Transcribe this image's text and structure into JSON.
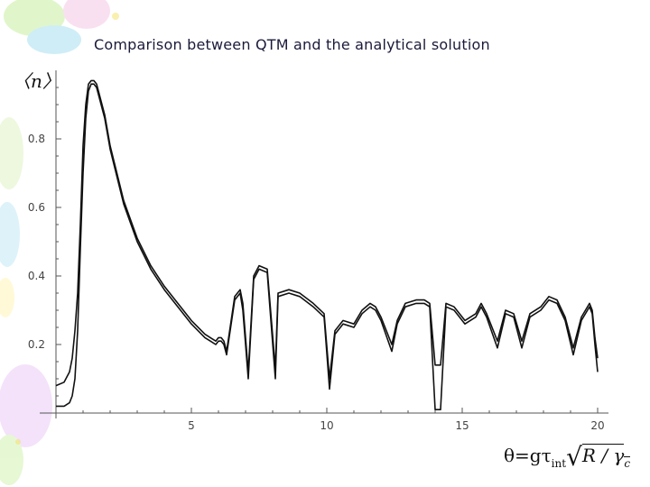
{
  "chart_data": {
    "type": "line",
    "title": "Comparison between QTM and the analytical solution",
    "ylabel": "〈n〉",
    "xlabel": "θ=gτint√R / γc",
    "xlabel_parts": {
      "main": "θ=gτ",
      "sub": "int",
      "rad": "R / γ",
      "sub2": "c"
    },
    "xlim": [
      0,
      20.4
    ],
    "ylim": [
      0,
      1.0
    ],
    "xticks": [
      5,
      10,
      15,
      20
    ],
    "yticks": [
      0.2,
      0.4,
      0.6,
      0.8
    ],
    "grid": false,
    "series": [
      {
        "x": [
          0,
          0.3,
          0.5,
          0.6,
          0.7,
          0.8,
          0.9,
          1.0,
          1.1,
          1.2,
          1.3,
          1.4,
          1.5,
          1.6,
          1.8,
          2.0,
          2.5,
          3.0,
          3.5,
          4.0,
          4.5,
          5.0,
          5.5,
          5.7,
          5.9,
          6.0,
          6.1,
          6.2,
          6.3,
          6.6,
          6.8,
          6.9,
          7.1,
          7.3,
          7.5,
          7.8,
          8.1,
          8.2,
          8.6,
          9.0,
          9.5,
          9.9,
          10.1,
          10.3,
          10.6,
          11.0,
          11.3,
          11.6,
          11.8,
          12.0,
          12.4,
          12.6,
          12.9,
          13.3,
          13.6,
          13.8,
          14.0,
          14.2,
          14.4,
          14.7,
          15.1,
          15.5,
          15.7,
          15.9,
          16.3,
          16.6,
          16.9,
          17.2,
          17.5,
          17.9,
          18.2,
          18.5,
          18.8,
          19.1,
          19.4,
          19.7,
          19.8,
          19.9,
          20.0
        ],
        "y": [
          0.08,
          0.09,
          0.12,
          0.16,
          0.24,
          0.35,
          0.55,
          0.78,
          0.9,
          0.96,
          0.97,
          0.97,
          0.96,
          0.93,
          0.87,
          0.78,
          0.62,
          0.51,
          0.43,
          0.37,
          0.32,
          0.27,
          0.23,
          0.22,
          0.21,
          0.22,
          0.22,
          0.21,
          0.18,
          0.34,
          0.36,
          0.32,
          0.12,
          0.4,
          0.43,
          0.42,
          0.13,
          0.35,
          0.36,
          0.35,
          0.32,
          0.29,
          0.1,
          0.24,
          0.27,
          0.26,
          0.3,
          0.32,
          0.31,
          0.28,
          0.2,
          0.27,
          0.32,
          0.33,
          0.33,
          0.32,
          0.14,
          0.14,
          0.32,
          0.31,
          0.27,
          0.29,
          0.32,
          0.29,
          0.21,
          0.3,
          0.29,
          0.21,
          0.29,
          0.31,
          0.34,
          0.33,
          0.28,
          0.19,
          0.28,
          0.32,
          0.3,
          0.22,
          0.16
        ]
      },
      {
        "x": [
          0,
          0.3,
          0.5,
          0.6,
          0.7,
          0.8,
          0.9,
          1.0,
          1.1,
          1.2,
          1.3,
          1.4,
          1.5,
          1.6,
          1.8,
          2.0,
          2.5,
          3.0,
          3.5,
          4.0,
          4.5,
          5.0,
          5.5,
          5.7,
          5.9,
          6.0,
          6.1,
          6.2,
          6.3,
          6.6,
          6.8,
          6.9,
          7.1,
          7.3,
          7.5,
          7.8,
          8.1,
          8.2,
          8.6,
          9.0,
          9.5,
          9.9,
          10.1,
          10.3,
          10.6,
          11.0,
          11.3,
          11.6,
          11.8,
          12.0,
          12.4,
          12.6,
          12.9,
          13.3,
          13.6,
          13.8,
          14.0,
          14.2,
          14.4,
          14.7,
          15.1,
          15.5,
          15.7,
          15.9,
          16.3,
          16.6,
          16.9,
          17.2,
          17.5,
          17.9,
          18.2,
          18.5,
          18.8,
          19.1,
          19.4,
          19.7,
          19.8,
          19.9,
          20.0
        ],
        "y": [
          0.02,
          0.02,
          0.03,
          0.05,
          0.1,
          0.24,
          0.48,
          0.7,
          0.86,
          0.94,
          0.96,
          0.96,
          0.95,
          0.92,
          0.86,
          0.77,
          0.61,
          0.5,
          0.42,
          0.36,
          0.31,
          0.26,
          0.22,
          0.21,
          0.2,
          0.21,
          0.21,
          0.2,
          0.17,
          0.33,
          0.35,
          0.3,
          0.1,
          0.39,
          0.42,
          0.41,
          0.1,
          0.34,
          0.35,
          0.34,
          0.31,
          0.28,
          0.07,
          0.23,
          0.26,
          0.25,
          0.29,
          0.31,
          0.3,
          0.27,
          0.18,
          0.26,
          0.31,
          0.32,
          0.32,
          0.31,
          0.01,
          0.01,
          0.31,
          0.3,
          0.26,
          0.28,
          0.31,
          0.28,
          0.19,
          0.29,
          0.28,
          0.19,
          0.28,
          0.3,
          0.33,
          0.32,
          0.27,
          0.17,
          0.27,
          0.31,
          0.29,
          0.2,
          0.12
        ]
      }
    ],
    "line_color": "#111111",
    "background_decor": [
      "balloon",
      "cloud",
      "flower"
    ]
  }
}
